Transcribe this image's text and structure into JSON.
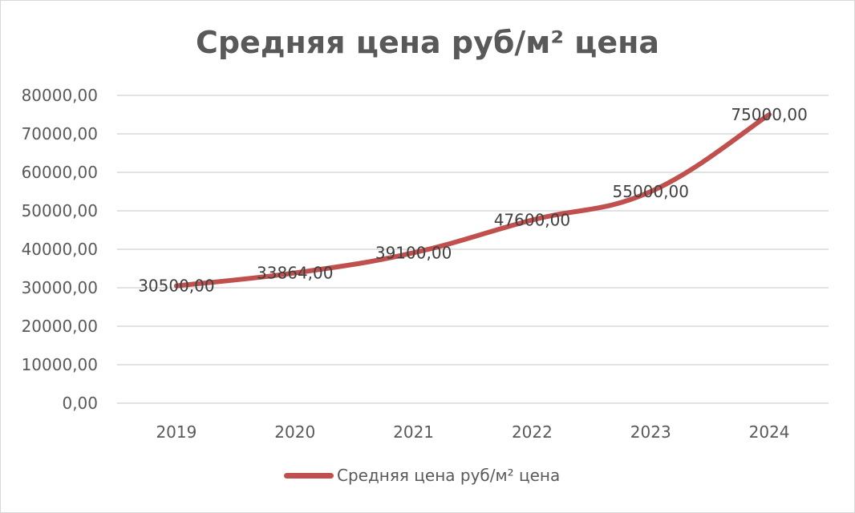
{
  "chart_data": {
    "type": "line",
    "title": "Средняя цена руб/м² цена",
    "categories": [
      "2019",
      "2020",
      "2021",
      "2022",
      "2023",
      "2024"
    ],
    "series": [
      {
        "name": "Средняя цена руб/м² цена",
        "values": [
          30500,
          33864,
          39100,
          47600,
          55000,
          75000
        ],
        "data_labels": [
          "30500,00",
          "33864,00",
          "39100,00",
          "47600,00",
          "55000,00",
          "75000,00"
        ],
        "color": "#c0504d"
      }
    ],
    "ylim": [
      0,
      80000
    ],
    "yticks": [
      0,
      10000,
      20000,
      30000,
      40000,
      50000,
      60000,
      70000,
      80000
    ],
    "ytick_labels": [
      "0,00",
      "10000,00",
      "20000,00",
      "30000,00",
      "40000,00",
      "50000,00",
      "60000,00",
      "70000,00",
      "80000,00"
    ],
    "xlabel": "",
    "ylabel": "",
    "grid": true,
    "legend_position": "bottom"
  },
  "colors": {
    "series": "#c0504d",
    "grid": "#d9d9d9",
    "text": "#595959"
  }
}
